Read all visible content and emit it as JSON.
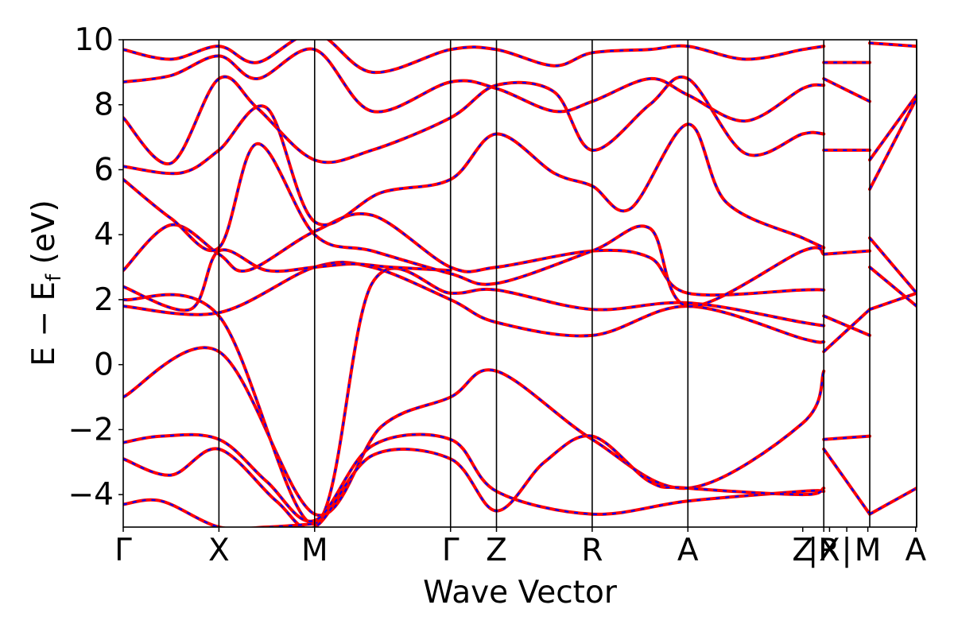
{
  "chart_data": {
    "type": "line",
    "title": "",
    "xlabel": "Wave Vector",
    "ylabel": "E − E",
    "ylabel_subscript": "f",
    "ylabel_unit": " (eV)",
    "ylim": [
      -5,
      10
    ],
    "xlim": [
      0,
      8.29
    ],
    "y_ticks": [
      -4,
      -2,
      0,
      2,
      4,
      6,
      8,
      10
    ],
    "y_tick_labels": [
      "−4",
      "−2",
      "0",
      "2",
      "4",
      "6",
      "8",
      "10"
    ],
    "high_symmetry_points": [
      {
        "label": "Γ",
        "x": 0.0
      },
      {
        "label": "X",
        "x": 1.0
      },
      {
        "label": "M",
        "x": 2.0
      },
      {
        "label": "Γ",
        "x": 3.42
      },
      {
        "label": "Z",
        "x": 3.9
      },
      {
        "label": "R",
        "x": 4.9
      },
      {
        "label": "A",
        "x": 5.9
      },
      {
        "label": "Z",
        "x": 7.1
      },
      {
        "label": "|R",
        "x": 7.32
      },
      {
        "label": "X",
        "x": 7.38
      },
      {
        "label": "|",
        "x": 7.56
      },
      {
        "label": "M",
        "x": 7.78
      },
      {
        "label": "A",
        "x": 8.28
      }
    ],
    "vertical_lines_x": [
      1.0,
      2.0,
      3.42,
      3.9,
      4.9,
      5.9,
      7.32,
      7.8,
      8.29
    ],
    "grid": false,
    "legend": "none",
    "series_styles": [
      {
        "color": "#ff0000",
        "style": "solid"
      },
      {
        "color": "#0000ff",
        "style": "dashed"
      }
    ],
    "bands": [
      {
        "x": [
          0,
          1,
          2,
          2.7,
          3.42,
          3.9,
          4.9,
          5.9,
          7.1,
          7.32
        ],
        "y": [
          -1.0,
          0.4,
          -4.6,
          -1.9,
          -1.0,
          -0.2,
          -2.3,
          -3.8,
          -1.8,
          -0.2
        ]
      },
      {
        "x": [
          0,
          1,
          2,
          2.6,
          3.42,
          3.9,
          4.9,
          5.9,
          7.1,
          7.32
        ],
        "y": [
          1.8,
          1.6,
          3.0,
          3.0,
          2.0,
          1.3,
          0.9,
          1.8,
          0.8,
          0.7
        ]
      },
      {
        "x": [
          0,
          1,
          2,
          2.6,
          3.42,
          3.9,
          4.9,
          5.9,
          7.1,
          7.32
        ],
        "y": [
          2.0,
          1.5,
          -4.9,
          2.5,
          2.2,
          2.3,
          1.7,
          1.9,
          1.3,
          1.2
        ]
      },
      {
        "x": [
          0,
          0.7,
          1,
          1.5,
          2,
          2.4,
          2.8,
          3.42
        ],
        "y": [
          2.4,
          1.7,
          3.5,
          2.9,
          3.0,
          3.1,
          3.0,
          2.9
        ]
      },
      {
        "x": [
          0,
          0.5,
          1,
          1.3,
          2,
          2.6,
          3.42,
          3.9,
          4.9,
          5.5,
          5.9,
          7.1,
          7.32
        ],
        "y": [
          2.9,
          4.3,
          3.4,
          2.9,
          4.1,
          4.6,
          3.0,
          3.0,
          3.5,
          3.3,
          2.2,
          2.3,
          2.3
        ]
      },
      {
        "x": [
          0,
          0.5,
          1,
          1.4,
          2,
          2.6,
          3.42,
          3.9,
          4.9,
          5.5,
          5.9,
          7.1,
          7.32
        ],
        "y": [
          5.7,
          4.5,
          3.6,
          6.8,
          4.0,
          3.5,
          2.8,
          2.5,
          3.5,
          4.2,
          1.8,
          3.5,
          3.4
        ]
      },
      {
        "x": [
          0,
          0.6,
          1,
          1.5,
          2,
          2.7,
          3.42,
          3.9,
          4.5,
          4.9,
          5.3,
          5.9,
          6.3,
          7.1,
          7.32
        ],
        "y": [
          6.1,
          5.9,
          6.6,
          7.9,
          4.4,
          5.3,
          5.7,
          7.1,
          5.9,
          5.5,
          4.8,
          7.4,
          5.0,
          3.9,
          3.6
        ]
      },
      {
        "x": [
          0,
          0.5,
          1,
          1.4,
          2,
          2.6,
          3.42,
          3.9,
          4.5,
          4.9,
          5.5,
          5.9,
          6.5,
          7.1,
          7.32
        ],
        "y": [
          7.6,
          6.2,
          8.8,
          7.9,
          6.3,
          6.6,
          7.6,
          8.6,
          8.4,
          6.6,
          8.0,
          8.8,
          6.5,
          7.1,
          7.1
        ]
      },
      {
        "x": [
          0,
          0.5,
          1,
          1.4,
          2,
          2.6,
          3.42,
          3.9,
          4.5,
          4.9,
          5.5,
          5.9,
          6.5,
          7.1,
          7.32
        ],
        "y": [
          8.7,
          8.9,
          9.5,
          8.8,
          9.7,
          7.8,
          8.7,
          8.5,
          7.8,
          8.1,
          8.8,
          8.3,
          7.5,
          8.5,
          8.6
        ]
      },
      {
        "x": [
          0,
          0.5,
          1,
          1.4,
          2,
          2.6,
          3.42,
          3.9,
          4.5,
          4.9,
          5.5,
          5.9,
          6.5,
          7.1,
          7.32
        ],
        "y": [
          9.7,
          9.4,
          9.8,
          9.3,
          10.2,
          9.0,
          9.7,
          9.7,
          9.2,
          9.6,
          9.7,
          9.8,
          9.4,
          9.7,
          9.8
        ]
      },
      {
        "x": [
          0,
          0.4,
          1,
          1.5,
          2,
          2.6,
          3.42,
          3.9,
          4.9,
          5.9,
          7.1,
          7.32
        ],
        "y": [
          -2.4,
          -2.2,
          -2.3,
          -3.6,
          -4.8,
          -2.5,
          -2.3,
          -3.9,
          -4.6,
          -4.2,
          -3.9,
          -3.9
        ]
      },
      {
        "x": [
          0,
          0.5,
          1,
          1.6,
          2,
          2.6,
          3.42,
          3.9,
          4.4,
          4.9,
          5.5,
          5.9,
          7.1,
          7.32
        ],
        "y": [
          -2.9,
          -3.4,
          -2.6,
          -4.2,
          -5.0,
          -2.8,
          -2.9,
          -4.5,
          -3.0,
          -2.2,
          -3.6,
          -3.8,
          -4.0,
          -3.8
        ]
      },
      {
        "x": [
          0,
          0.4,
          1,
          1.5,
          2
        ],
        "y": [
          -4.3,
          -4.2,
          -5.0,
          -5.0,
          -4.9
        ]
      },
      {
        "x": [
          7.32,
          7.8
        ],
        "y": [
          -2.3,
          -2.2
        ]
      },
      {
        "x": [
          7.32,
          7.8
        ],
        "y": [
          -2.6,
          -4.6
        ]
      },
      {
        "x": [
          7.32,
          7.8
        ],
        "y": [
          1.5,
          0.9
        ]
      },
      {
        "x": [
          7.32,
          7.8
        ],
        "y": [
          0.4,
          1.7
        ]
      },
      {
        "x": [
          7.32,
          7.8
        ],
        "y": [
          3.4,
          3.5
        ]
      },
      {
        "x": [
          7.32,
          7.8
        ],
        "y": [
          6.6,
          6.6
        ]
      },
      {
        "x": [
          7.32,
          7.8
        ],
        "y": [
          8.8,
          8.1
        ]
      },
      {
        "x": [
          7.32,
          7.8
        ],
        "y": [
          9.3,
          9.3
        ]
      },
      {
        "x": [
          7.8,
          8.29
        ],
        "y": [
          -4.6,
          -3.8
        ]
      },
      {
        "x": [
          7.8,
          8.29
        ],
        "y": [
          1.7,
          2.2
        ]
      },
      {
        "x": [
          7.8,
          8.29
        ],
        "y": [
          3.0,
          1.8
        ]
      },
      {
        "x": [
          7.8,
          8.29
        ],
        "y": [
          3.9,
          2.2
        ]
      },
      {
        "x": [
          7.8,
          8.29
        ],
        "y": [
          5.4,
          8.2
        ]
      },
      {
        "x": [
          7.8,
          8.29
        ],
        "y": [
          6.3,
          8.3
        ]
      },
      {
        "x": [
          7.8,
          8.29
        ],
        "y": [
          9.9,
          9.8
        ]
      }
    ]
  }
}
